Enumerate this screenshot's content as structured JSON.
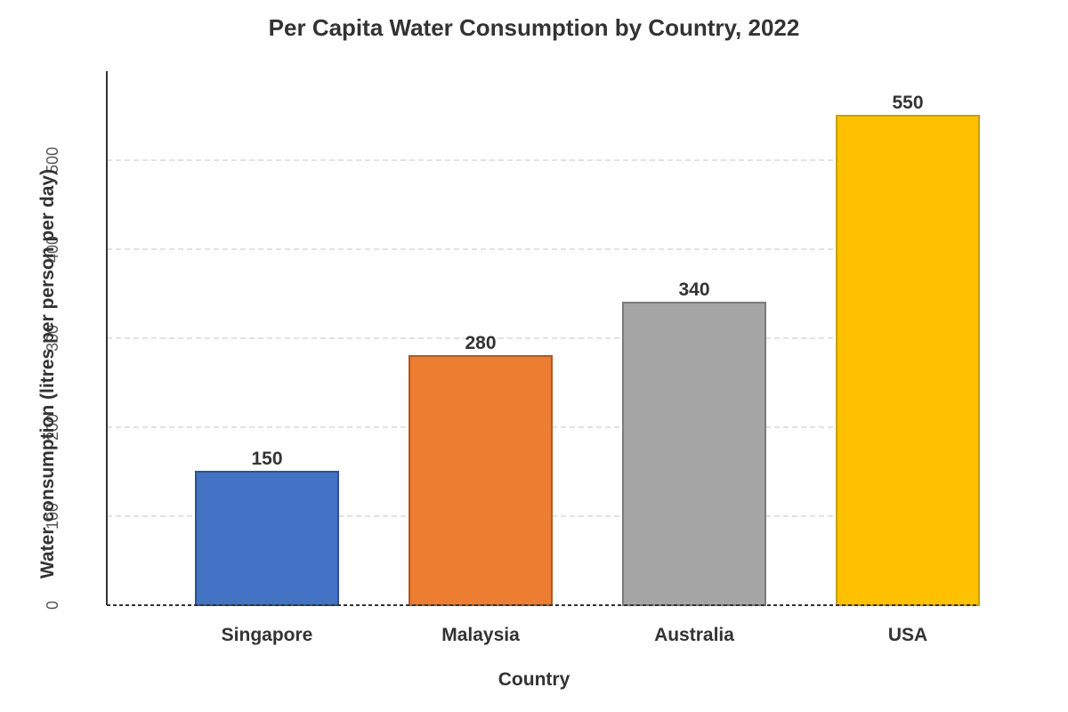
{
  "chart_data": {
    "type": "bar",
    "title": "Per Capita Water Consumption by Country, 2022",
    "xlabel": "Country",
    "ylabel": "Water consumption (litres per person per day)",
    "categories": [
      "Singapore",
      "Malaysia",
      "Australia",
      "USA"
    ],
    "values": [
      150,
      280,
      340,
      550
    ],
    "data_labels": [
      "150",
      "280",
      "340",
      "550"
    ],
    "ylim": [
      0,
      600
    ],
    "yticks": [
      0,
      100,
      200,
      300,
      400,
      500
    ],
    "ytick_labels": [
      "0",
      "100",
      "200",
      "300",
      "400",
      "500"
    ],
    "colors": [
      "#4472C4",
      "#ED7D31",
      "#A5A5A5",
      "#FFC000"
    ],
    "edge_colors": [
      "#2F528F",
      "#AE5A21",
      "#7B7B7B",
      "#C9A000"
    ],
    "grid": true,
    "legend": "none"
  }
}
